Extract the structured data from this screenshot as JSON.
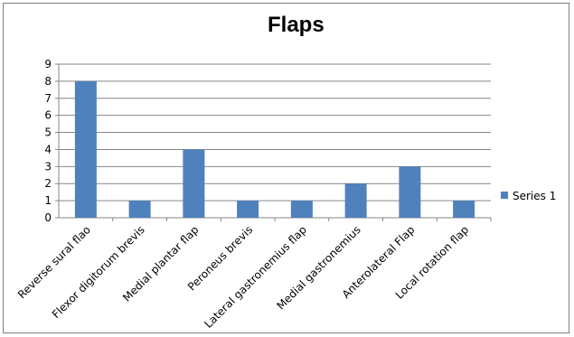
{
  "chart_data": {
    "type": "bar",
    "title": "Flaps",
    "categories": [
      "Reverse sural flao",
      "Flexor digitorum brevis",
      "Medial plantar flap",
      "Peroneus brevis",
      "Lateral gastronemius flap",
      "Medial gastronemius",
      "Anterolateral Flap",
      "Local rotation flap"
    ],
    "series": [
      {
        "name": "Series 1",
        "values": [
          8,
          1,
          4,
          1,
          1,
          2,
          3,
          1
        ],
        "color": "#4f81bd"
      }
    ],
    "ylim": [
      0,
      9
    ],
    "yticks": [
      "0",
      "1",
      "2",
      "3",
      "4",
      "5",
      "6",
      "7",
      "8",
      "9"
    ],
    "grid": true,
    "legend": "right"
  }
}
